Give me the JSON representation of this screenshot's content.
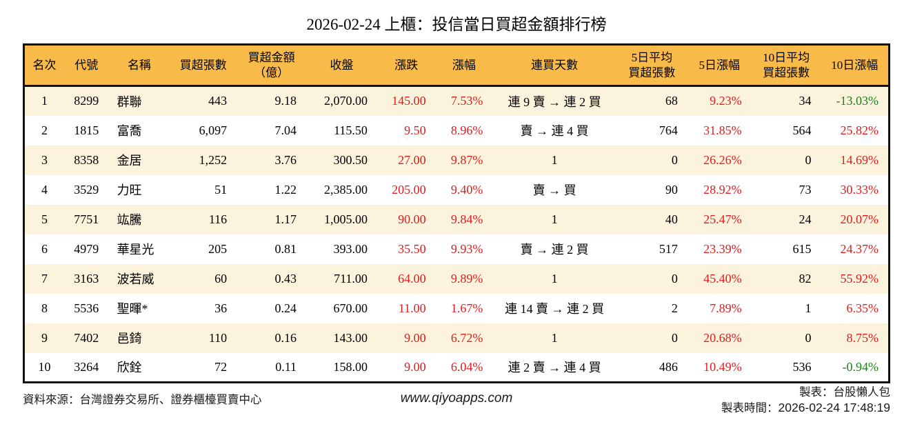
{
  "chart_data": {
    "type": "table",
    "title": "2026-02-24 上櫃：投信當日買超金額排行榜",
    "columns": [
      {
        "key": "rank",
        "label": "名次",
        "align": "center",
        "colored": false
      },
      {
        "key": "code",
        "label": "代號",
        "align": "center",
        "colored": false
      },
      {
        "key": "name",
        "label": "名稱",
        "align": "left",
        "colored": false
      },
      {
        "key": "volume",
        "label": "買超張數",
        "align": "right",
        "colored": false
      },
      {
        "key": "amount",
        "label": "買超金額\n（億）",
        "align": "right",
        "colored": false
      },
      {
        "key": "close",
        "label": "收盤",
        "align": "right",
        "colored": false
      },
      {
        "key": "change",
        "label": "漲跌",
        "align": "right",
        "colored": true
      },
      {
        "key": "change_pct",
        "label": "漲幅",
        "align": "right",
        "colored": true
      },
      {
        "key": "streak",
        "label": "連買天數",
        "align": "center",
        "colored": false
      },
      {
        "key": "avg5",
        "label": "5日平均\n買超張數",
        "align": "right",
        "colored": false
      },
      {
        "key": "pct5",
        "label": "5日漲幅",
        "align": "right",
        "colored": true
      },
      {
        "key": "avg10",
        "label": "10日平均\n買超張數",
        "align": "right",
        "colored": false
      },
      {
        "key": "pct10",
        "label": "10日漲幅",
        "align": "right",
        "colored": true
      }
    ],
    "rows": [
      [
        "1",
        "8299",
        "群聯",
        "443",
        "9.18",
        "2,070.00",
        "145.00",
        "7.53%",
        "連 9 賣 → 連 2 買",
        "68",
        "9.23%",
        "34",
        "-13.03%"
      ],
      [
        "2",
        "1815",
        "富喬",
        "6,097",
        "7.04",
        "115.50",
        "9.50",
        "8.96%",
        "賣 → 連 4 買",
        "764",
        "31.85%",
        "564",
        "25.82%"
      ],
      [
        "3",
        "8358",
        "金居",
        "1,252",
        "3.76",
        "300.50",
        "27.00",
        "9.87%",
        "1",
        "0",
        "26.26%",
        "0",
        "14.69%"
      ],
      [
        "4",
        "3529",
        "力旺",
        "51",
        "1.22",
        "2,385.00",
        "205.00",
        "9.40%",
        "賣 → 買",
        "90",
        "28.92%",
        "73",
        "30.33%"
      ],
      [
        "5",
        "7751",
        "竑騰",
        "116",
        "1.17",
        "1,005.00",
        "90.00",
        "9.84%",
        "1",
        "40",
        "25.47%",
        "24",
        "20.07%"
      ],
      [
        "6",
        "4979",
        "華星光",
        "205",
        "0.81",
        "393.00",
        "35.50",
        "9.93%",
        "賣 → 連 2 買",
        "517",
        "23.39%",
        "615",
        "24.37%"
      ],
      [
        "7",
        "3163",
        "波若威",
        "60",
        "0.43",
        "711.00",
        "64.00",
        "9.89%",
        "1",
        "0",
        "45.40%",
        "82",
        "55.92%"
      ],
      [
        "8",
        "5536",
        "聖暉*",
        "36",
        "0.24",
        "670.00",
        "11.00",
        "1.67%",
        "連 14 賣 → 連 2 買",
        "2",
        "7.89%",
        "1",
        "6.35%"
      ],
      [
        "9",
        "7402",
        "邑錡",
        "110",
        "0.16",
        "143.00",
        "9.00",
        "6.72%",
        "1",
        "0",
        "20.68%",
        "0",
        "8.75%"
      ],
      [
        "10",
        "3264",
        "欣銓",
        "72",
        "0.11",
        "158.00",
        "9.00",
        "6.04%",
        "連 2 賣 → 連 4 買",
        "486",
        "10.49%",
        "536",
        "-0.94%"
      ]
    ]
  },
  "footer": {
    "source": "資料來源：台灣證券交易所、證券櫃檯買賣中心",
    "website": "www.qiyoapps.com",
    "maker": "製表：台股懶人包",
    "made_time_label": "製表時間：",
    "made_time": "2026-02-24 17:48:19"
  },
  "colors": {
    "header_bg": "#f8ba49",
    "row_alt_bg": "#fcf3dd",
    "up_red": "#dc1e1e",
    "down_green": "#1e7e1e"
  }
}
